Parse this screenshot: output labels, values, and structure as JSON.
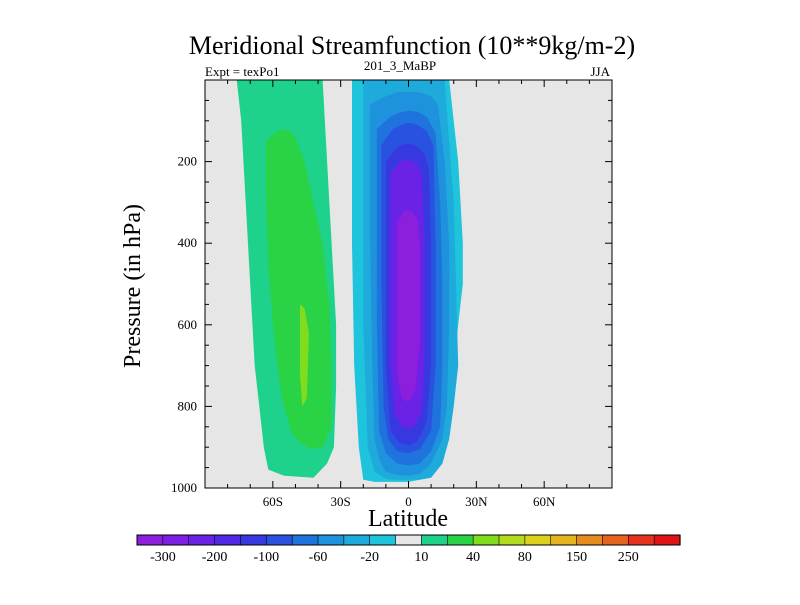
{
  "chart_data": {
    "type": "contour",
    "title": "Meridional Streamfunction (10**9kg/m-2)",
    "subtitle_left": "Expt = texPo1",
    "subtitle_center": "201_3_MaBP",
    "subtitle_right": "JJA",
    "xlabel": "Latitude",
    "ylabel": "Pressure (in hPa)",
    "xlim": [
      -90,
      90
    ],
    "ylim": [
      1000,
      0
    ],
    "x_ticks": [
      {
        "value": -60,
        "label": "60S"
      },
      {
        "value": -30,
        "label": "30S"
      },
      {
        "value": 0,
        "label": "0"
      },
      {
        "value": 30,
        "label": "30N"
      },
      {
        "value": 60,
        "label": "60N"
      }
    ],
    "y_ticks": [
      {
        "value": 200,
        "label": "200"
      },
      {
        "value": 400,
        "label": "400"
      },
      {
        "value": 600,
        "label": "600"
      },
      {
        "value": 800,
        "label": "800"
      },
      {
        "value": 1000,
        "label": "1000"
      }
    ],
    "background_color": "#e6e6e6",
    "colorbar": {
      "colors": [
        "#8c1fdc",
        "#7e1fe6",
        "#6a22e6",
        "#5227e6",
        "#3838e0",
        "#2a52e0",
        "#1e73dc",
        "#1e92dc",
        "#1eabdc",
        "#1ec3dc",
        "#e6e6e6",
        "#1ed28c",
        "#2ad246",
        "#82dc1e",
        "#b4dc1e",
        "#dcd21e",
        "#e6b41e",
        "#e68c1e",
        "#e6641e",
        "#e6321e",
        "#dc1414"
      ],
      "labels": [
        "-300",
        "-200",
        "-100",
        "-60",
        "-20",
        "10",
        "40",
        "80",
        "150",
        "250"
      ]
    },
    "contour_regions": [
      {
        "name": "negative-cell-outer",
        "level": -10,
        "color": "#1ec3dc",
        "lat": [
          -25,
          -10,
          -4,
          0,
          6,
          12,
          18,
          20,
          22,
          23,
          24,
          24,
          22,
          20,
          18,
          15,
          10,
          5,
          0,
          -5,
          -10,
          -15,
          -20,
          -22,
          -24,
          -25,
          -25
        ],
        "p": [
          0,
          0,
          0,
          0,
          0,
          0,
          0,
          100,
          200,
          300,
          400,
          500,
          600,
          700,
          760,
          840,
          920,
          980,
          985,
          985,
          985,
          985,
          980,
          900,
          700,
          400,
          0
        ]
      },
      {
        "name": "negative-cell-20",
        "level": -40,
        "color": "#1eabdc",
        "lat": [
          -20,
          -12,
          -5,
          0,
          5,
          10,
          16,
          18,
          20,
          21,
          22,
          20,
          18,
          15,
          10,
          5,
          0,
          -5,
          -10,
          -15,
          -18,
          -20,
          -20
        ],
        "p": [
          0,
          0,
          0,
          0,
          0,
          0,
          0,
          150,
          300,
          500,
          700,
          800,
          880,
          940,
          975,
          980,
          980,
          980,
          978,
          960,
          900,
          600,
          0
        ]
      },
      {
        "name": "negative-cell-60",
        "level": -80,
        "color": "#1e92dc",
        "lat": [
          -17,
          -10,
          -5,
          0,
          5,
          10,
          13,
          16,
          18,
          18,
          17,
          15,
          10,
          5,
          0,
          -5,
          -10,
          -13,
          -15,
          -16,
          -17,
          -17
        ],
        "p": [
          60,
          40,
          30,
          30,
          30,
          40,
          60,
          200,
          400,
          600,
          800,
          880,
          940,
          965,
          970,
          968,
          960,
          930,
          880,
          700,
          400,
          60
        ]
      },
      {
        "name": "negative-cell-100",
        "level": -150,
        "color": "#1e73dc",
        "lat": [
          -14,
          -8,
          -4,
          0,
          4,
          8,
          12,
          14,
          15,
          15,
          14,
          10,
          5,
          0,
          -5,
          -10,
          -13,
          -14,
          -14
        ],
        "p": [
          120,
          90,
          80,
          75,
          78,
          90,
          130,
          300,
          500,
          700,
          850,
          910,
          940,
          945,
          940,
          915,
          860,
          600,
          120
        ]
      },
      {
        "name": "negative-cell-200",
        "level": -200,
        "color": "#2a52e0",
        "lat": [
          -12,
          -7,
          -3,
          0,
          4,
          8,
          11,
          12,
          12,
          10,
          5,
          0,
          -5,
          -9,
          -11,
          -12,
          -12
        ],
        "p": [
          160,
          120,
          110,
          105,
          110,
          125,
          160,
          400,
          700,
          860,
          905,
          915,
          910,
          880,
          800,
          500,
          160
        ]
      },
      {
        "name": "negative-cell-250",
        "level": -250,
        "color": "#3838e0",
        "lat": [
          -10,
          -5,
          -1,
          3,
          7,
          9,
          10,
          10,
          8,
          4,
          0,
          -4,
          -8,
          -10,
          -10
        ],
        "p": [
          200,
          165,
          155,
          160,
          180,
          220,
          400,
          700,
          840,
          885,
          895,
          890,
          860,
          700,
          200
        ]
      },
      {
        "name": "negative-cell-300",
        "level": -300,
        "color": "#6a22e6",
        "lat": [
          -8,
          -4,
          0,
          4,
          6,
          7,
          7,
          6,
          3,
          0,
          -3,
          -6,
          -8,
          -8
        ],
        "p": [
          230,
          200,
          195,
          205,
          240,
          400,
          700,
          810,
          845,
          855,
          850,
          820,
          700,
          230
        ]
      },
      {
        "name": "negative-cell-core",
        "level": -350,
        "color": "#8c1fdc",
        "lat": [
          -5,
          -2,
          1,
          4,
          5,
          5,
          3,
          0,
          -3,
          -5,
          -5
        ],
        "p": [
          350,
          320,
          320,
          340,
          400,
          650,
          760,
          790,
          780,
          720,
          350
        ]
      },
      {
        "name": "positive-cell-outer",
        "level": 10,
        "color": "#1ed28c",
        "lat": [
          -76,
          -72,
          -68,
          -42,
          -40,
          -38,
          -36,
          -34,
          -32,
          -32,
          -33,
          -36,
          -42,
          -55,
          -62,
          -64,
          -66,
          -68,
          -70,
          -72,
          -74,
          -76
        ],
        "p": [
          0,
          0,
          0,
          0,
          0,
          0,
          200,
          400,
          600,
          750,
          900,
          940,
          975,
          970,
          955,
          900,
          800,
          700,
          500,
          300,
          100,
          0
        ]
      },
      {
        "name": "positive-cell-40",
        "level": 40,
        "color": "#2ad246",
        "lat": [
          -63,
          -58,
          -53,
          -50,
          -46,
          -42,
          -38,
          -35,
          -34,
          -34,
          -38,
          -42,
          -48,
          -52,
          -56,
          -58,
          -60,
          -62,
          -63,
          -63
        ],
        "p": [
          150,
          125,
          122,
          140,
          200,
          300,
          400,
          550,
          700,
          850,
          900,
          905,
          890,
          860,
          780,
          700,
          600,
          450,
          300,
          150
        ]
      },
      {
        "name": "positive-cell-80",
        "level": 80,
        "color": "#82dc1e",
        "lat": [
          -48,
          -46,
          -44,
          -45,
          -47,
          -48,
          -48
        ],
        "p": [
          550,
          560,
          620,
          780,
          800,
          720,
          550
        ]
      }
    ]
  }
}
